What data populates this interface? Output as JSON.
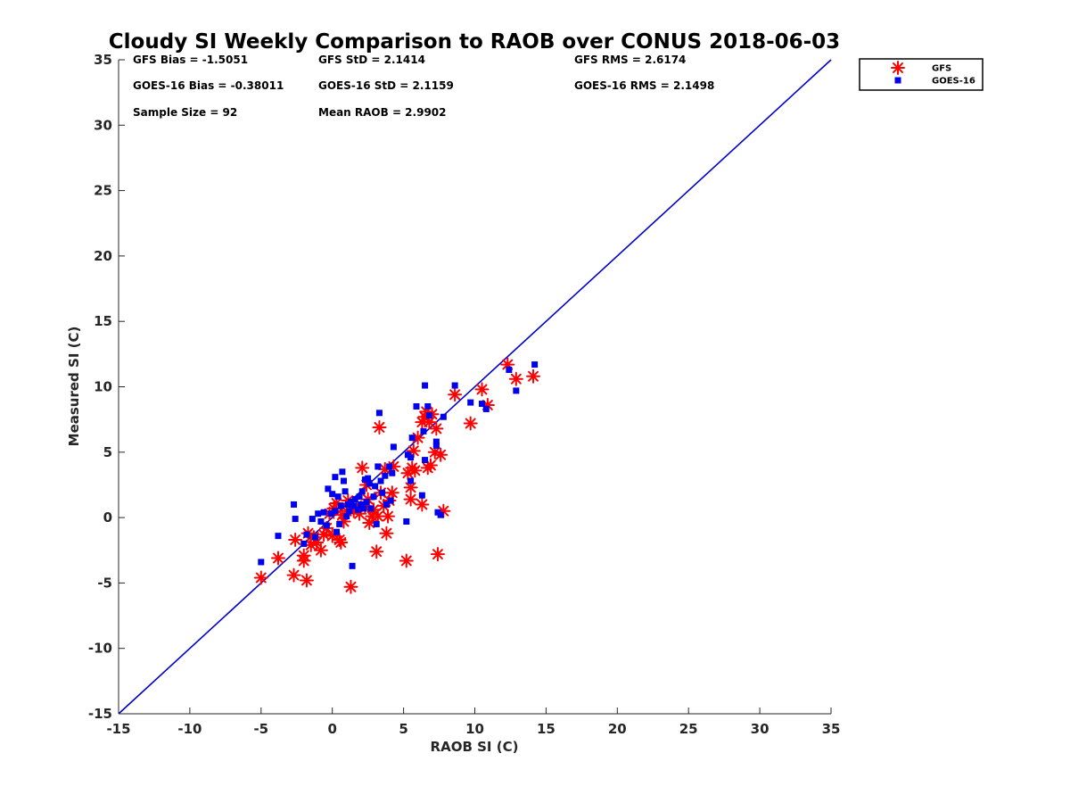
{
  "chart_data": {
    "type": "scatter",
    "title": "Cloudy SI Weekly Comparison to RAOB over CONUS 2018-06-03",
    "xlabel": "RAOB SI (C)",
    "ylabel": "Measured SI (C)",
    "xlim": [
      -15,
      35
    ],
    "ylim": [
      -15,
      35
    ],
    "xticks": [
      "-15",
      "-10",
      "-5",
      "0",
      "5",
      "10",
      "15",
      "20",
      "25",
      "30",
      "35"
    ],
    "yticks": [
      "-15",
      "-10",
      "-5",
      "0",
      "5",
      "10",
      "15",
      "20",
      "25",
      "30",
      "35"
    ],
    "grid": false,
    "legend_position": "top-right",
    "reference_line": {
      "from": [
        -15,
        -15
      ],
      "to": [
        35,
        35
      ],
      "color": "#0000cc"
    },
    "stats": [
      [
        "GFS Bias = -1.5051",
        "GFS StD = 2.1414",
        "GFS RMS = 2.6174"
      ],
      [
        "GOES-16 Bias = -0.38011",
        "GOES-16 StD = 2.1159",
        "GOES-16 RMS = 2.1498"
      ],
      [
        "Sample Size = 92",
        "Mean RAOB = 2.9902",
        ""
      ]
    ],
    "series": [
      {
        "name": "GFS",
        "marker": "asterisk",
        "color": "#ff0000",
        "points": [
          [
            -5,
            -4.6
          ],
          [
            -3.8,
            -3.1
          ],
          [
            -2.7,
            -4.4
          ],
          [
            -2.6,
            -1.7
          ],
          [
            -2,
            -2.9
          ],
          [
            -2,
            -3.3
          ],
          [
            -1.8,
            -4.8
          ],
          [
            -1.7,
            -1.2
          ],
          [
            -1.5,
            -2.1
          ],
          [
            -1.3,
            -1.5
          ],
          [
            -1.1,
            -1.9
          ],
          [
            -0.8,
            -2.5
          ],
          [
            -0.6,
            -1.3
          ],
          [
            -0.4,
            -0.8
          ],
          [
            -0.2,
            0.3
          ],
          [
            0,
            -1.4
          ],
          [
            0.1,
            0.7
          ],
          [
            0.3,
            1.1
          ],
          [
            0.5,
            -1.7
          ],
          [
            0.6,
            -1.9
          ],
          [
            0.7,
            0.2
          ],
          [
            0.8,
            -0.3
          ],
          [
            1,
            0.5
          ],
          [
            1.1,
            1.3
          ],
          [
            1.3,
            -5.3
          ],
          [
            1.5,
            0.5
          ],
          [
            1.7,
            0.9
          ],
          [
            1.9,
            0.3
          ],
          [
            2.1,
            3.8
          ],
          [
            2.3,
            0.8
          ],
          [
            2.4,
            2.5
          ],
          [
            2.5,
            1.4
          ],
          [
            2.6,
            -0.4
          ],
          [
            2.8,
            0.1
          ],
          [
            2.9,
            0.6
          ],
          [
            3.1,
            -2.6
          ],
          [
            3.2,
            0.1
          ],
          [
            3.3,
            6.9
          ],
          [
            3.4,
            1.9
          ],
          [
            3.6,
            0.9
          ],
          [
            3.7,
            3.7
          ],
          [
            3.8,
            -1.2
          ],
          [
            3.9,
            0.1
          ],
          [
            4,
            1.3
          ],
          [
            4.2,
            1.9
          ],
          [
            4.3,
            3.9
          ],
          [
            5.2,
            -3.3
          ],
          [
            5.3,
            3.4
          ],
          [
            5.5,
            1.4
          ],
          [
            5.5,
            2.3
          ],
          [
            5.6,
            3.8
          ],
          [
            5.7,
            5.1
          ],
          [
            5.8,
            3.6
          ],
          [
            6,
            6.1
          ],
          [
            6.3,
            1
          ],
          [
            6.3,
            7.3
          ],
          [
            6.5,
            7.7
          ],
          [
            6.6,
            8.1
          ],
          [
            6.7,
            3.8
          ],
          [
            6.8,
            7.3
          ],
          [
            6.9,
            4
          ],
          [
            7,
            7.9
          ],
          [
            7.2,
            5
          ],
          [
            7.3,
            6.8
          ],
          [
            7.4,
            -2.8
          ],
          [
            7.6,
            4.8
          ],
          [
            7.8,
            0.5
          ],
          [
            8.6,
            9.4
          ],
          [
            9.7,
            7.2
          ],
          [
            10.5,
            9.8
          ],
          [
            10.9,
            8.6
          ],
          [
            12.3,
            11.7
          ],
          [
            12.9,
            10.6
          ],
          [
            14.1,
            10.8
          ]
        ]
      },
      {
        "name": "GOES-16",
        "marker": "square",
        "color": "#0000ee",
        "points": [
          [
            -5,
            -3.4
          ],
          [
            -3.8,
            -1.4
          ],
          [
            -2.7,
            1
          ],
          [
            -2.6,
            -0.1
          ],
          [
            -2,
            -2
          ],
          [
            -1.8,
            -1.3
          ],
          [
            -1.4,
            -0.1
          ],
          [
            -1.2,
            -1.5
          ],
          [
            -1,
            0.3
          ],
          [
            -0.8,
            -0.3
          ],
          [
            -0.6,
            0.4
          ],
          [
            -0.4,
            -0.6
          ],
          [
            -0.3,
            2.2
          ],
          [
            -0.1,
            0.3
          ],
          [
            0,
            1.8
          ],
          [
            0.2,
            3.1
          ],
          [
            0.2,
            0.5
          ],
          [
            0.3,
            -1.1
          ],
          [
            0.4,
            1.6
          ],
          [
            0.5,
            -0.5
          ],
          [
            0.6,
            0.9
          ],
          [
            0.7,
            3.5
          ],
          [
            0.8,
            2.8
          ],
          [
            0.9,
            2
          ],
          [
            1,
            0.1
          ],
          [
            1.1,
            1
          ],
          [
            1.2,
            0.5
          ],
          [
            1.3,
            1.2
          ],
          [
            1.4,
            -3.7
          ],
          [
            1.5,
            0.9
          ],
          [
            1.6,
            1.4
          ],
          [
            1.8,
            0.6
          ],
          [
            1.9,
            1.6
          ],
          [
            2,
            1
          ],
          [
            2.1,
            2
          ],
          [
            2.2,
            0.7
          ],
          [
            2.3,
            2.9
          ],
          [
            2.4,
            1.2
          ],
          [
            2.5,
            3
          ],
          [
            2.6,
            2.6
          ],
          [
            2.7,
            0.7
          ],
          [
            2.9,
            1.6
          ],
          [
            3,
            2.4
          ],
          [
            3.1,
            -0.5
          ],
          [
            3.2,
            3.9
          ],
          [
            3.3,
            8
          ],
          [
            3.4,
            2.8
          ],
          [
            3.5,
            1.9
          ],
          [
            3.7,
            3.2
          ],
          [
            3.8,
            1
          ],
          [
            4,
            3.9
          ],
          [
            4.1,
            1.3
          ],
          [
            4.2,
            3.4
          ],
          [
            4.3,
            5.4
          ],
          [
            5.2,
            -0.3
          ],
          [
            5.3,
            4.8
          ],
          [
            5.5,
            4.6
          ],
          [
            5.5,
            2.8
          ],
          [
            5.6,
            6.1
          ],
          [
            5.9,
            8.5
          ],
          [
            6.3,
            1.7
          ],
          [
            6.4,
            6.6
          ],
          [
            6.5,
            10.1
          ],
          [
            6.5,
            4.4
          ],
          [
            6.7,
            8.5
          ],
          [
            6.8,
            7.8
          ],
          [
            7.3,
            5.8
          ],
          [
            7.3,
            5.5
          ],
          [
            7.4,
            0.4
          ],
          [
            7.6,
            0.2
          ],
          [
            7.8,
            7.7
          ],
          [
            8.6,
            10.1
          ],
          [
            9.7,
            8.8
          ],
          [
            10.5,
            8.7
          ],
          [
            10.8,
            8.3
          ],
          [
            12.4,
            11.3
          ],
          [
            12.9,
            9.7
          ],
          [
            14.2,
            11.7
          ]
        ]
      }
    ]
  }
}
